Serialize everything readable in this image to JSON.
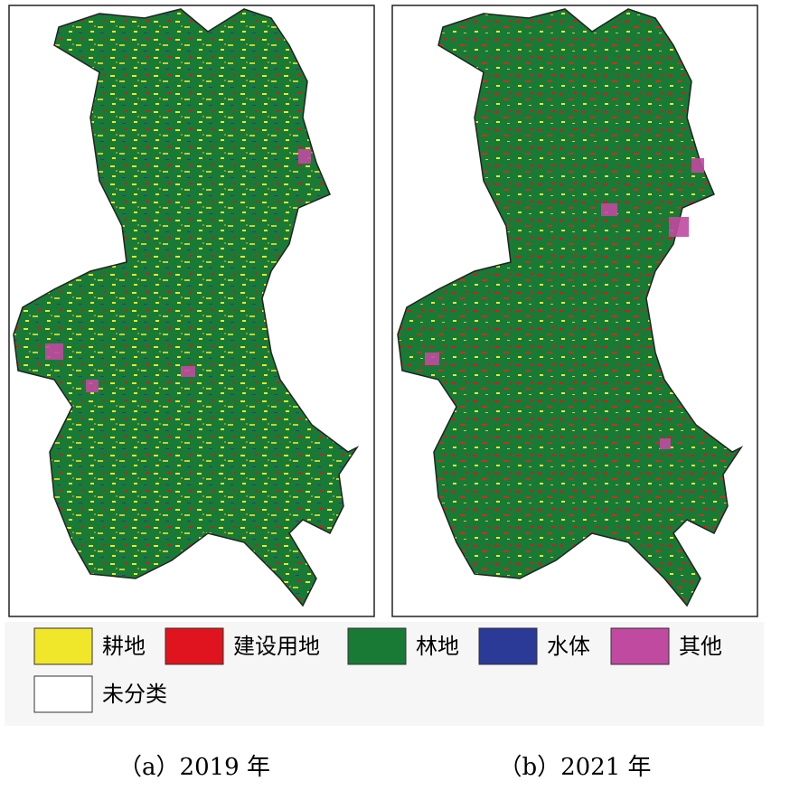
{
  "panels": [
    {
      "caption": "（a）2019 年"
    },
    {
      "caption": "（b）2021 年"
    }
  ],
  "legend": {
    "items": [
      {
        "label": "耕地",
        "color": "#f0e62a"
      },
      {
        "label": "建设用地",
        "color": "#e0141e"
      },
      {
        "label": "林地",
        "color": "#197a35"
      },
      {
        "label": "水体",
        "color": "#2a3a96"
      },
      {
        "label": "其他",
        "color": "#c04aa0"
      },
      {
        "label": "未分类",
        "color": "#ffffff"
      }
    ]
  }
}
